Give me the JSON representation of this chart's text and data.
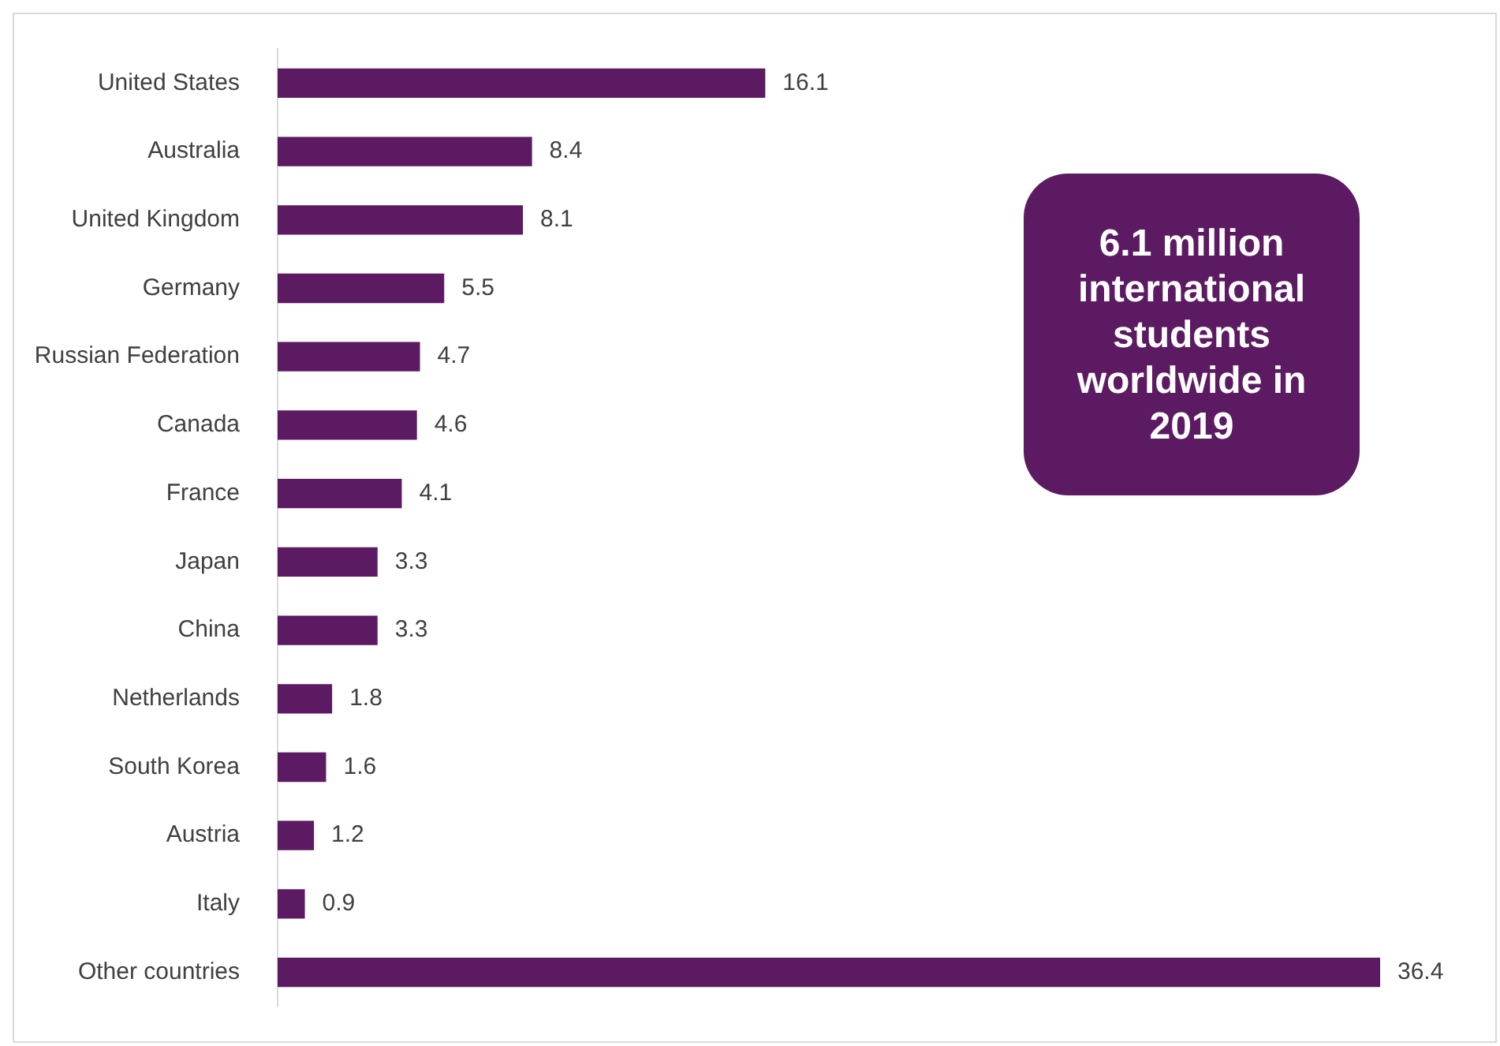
{
  "chart_data": {
    "type": "bar",
    "orientation": "horizontal",
    "categories": [
      "United States",
      "Australia",
      "United Kingdom",
      "Germany",
      "Russian Federation",
      "Canada",
      "France",
      "Japan",
      "China",
      "Netherlands",
      "South Korea",
      "Austria",
      "Italy",
      "Other countries"
    ],
    "values": [
      16.1,
      8.4,
      8.1,
      5.5,
      4.7,
      4.6,
      4.1,
      3.3,
      3.3,
      1.8,
      1.6,
      1.2,
      0.9,
      36.4
    ],
    "color": "#5c1a62",
    "data_labels": true,
    "legend": false,
    "annotations": [
      "6.1 million international students worldwide in 2019"
    ]
  }
}
